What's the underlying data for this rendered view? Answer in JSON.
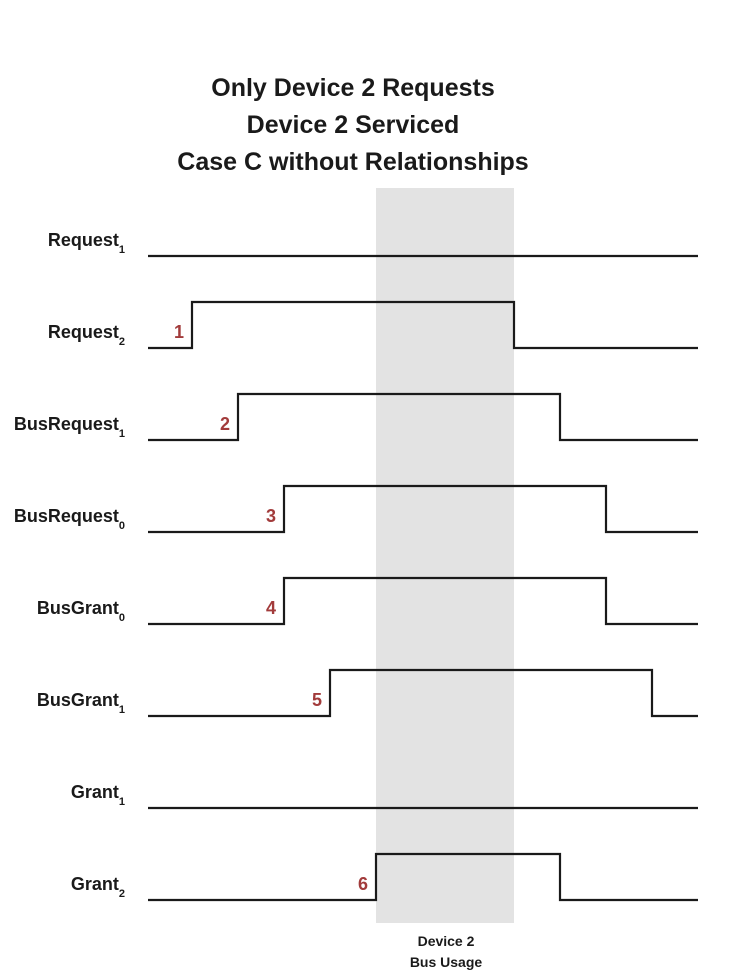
{
  "title": {
    "line1": "Only Device 2 Requests",
    "line2": "Device 2 Serviced",
    "line3": "Case C without Relationships"
  },
  "highlight": {
    "label_line1": "Device 2",
    "label_line2": "Bus Usage",
    "color": "#e3e3e3"
  },
  "colors": {
    "wave": "#1a1a1a",
    "event_number": "#a23b3b"
  },
  "signals": [
    {
      "name": "Request",
      "subscript": "1",
      "high_from": null,
      "high_to": null,
      "event": ""
    },
    {
      "name": "Request",
      "subscript": "2",
      "high_from": 1,
      "high_to": 8,
      "event": "1"
    },
    {
      "name": "BusRequest",
      "subscript": "1",
      "high_from": 2,
      "high_to": 9,
      "event": "2"
    },
    {
      "name": "BusRequest",
      "subscript": "0",
      "high_from": 3,
      "high_to": 10,
      "event": "3"
    },
    {
      "name": "BusGrant",
      "subscript": "0",
      "high_from": 3,
      "high_to": 10,
      "event": "4"
    },
    {
      "name": "BusGrant",
      "subscript": "1",
      "high_from": 4,
      "high_to": 11,
      "event": "5"
    },
    {
      "name": "Grant",
      "subscript": "1",
      "high_from": null,
      "high_to": null,
      "event": ""
    },
    {
      "name": "Grant",
      "subscript": "2",
      "high_from": 5,
      "high_to": 9,
      "event": "6"
    }
  ],
  "usage_window": {
    "from": 5,
    "to": 8
  }
}
